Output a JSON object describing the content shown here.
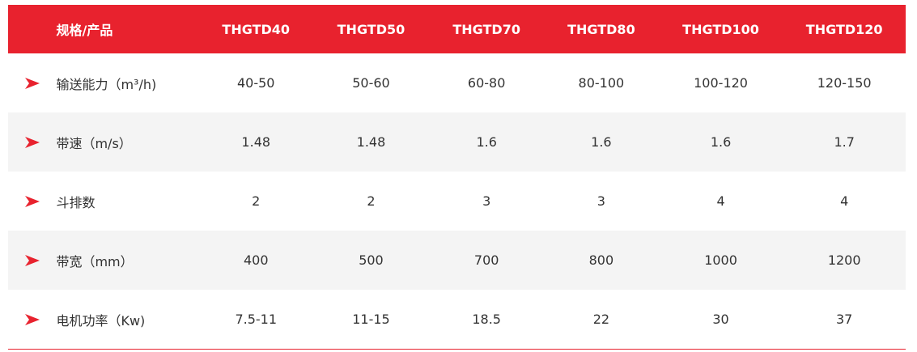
{
  "colors": {
    "accent": "#e8222e",
    "row_alt": "#f4f4f4",
    "text": "#333333"
  },
  "header": {
    "label": "规格/产品",
    "models": [
      "THGTD40",
      "THGTD50",
      "THGTD70",
      "THGTD80",
      "THGTD100",
      "THGTD120"
    ]
  },
  "rows": [
    {
      "label": "输送能力（m³/h)",
      "values": [
        "40-50",
        "50-60",
        "60-80",
        "80-100",
        "100-120",
        "120-150"
      ]
    },
    {
      "label": "带速（m/s）",
      "values": [
        "1.48",
        "1.48",
        "1.6",
        "1.6",
        "1.6",
        "1.7"
      ]
    },
    {
      "label": "斗排数",
      "values": [
        "2",
        "2",
        "3",
        "3",
        "4",
        "4"
      ]
    },
    {
      "label": "带宽（mm）",
      "values": [
        "400",
        "500",
        "700",
        "800",
        "1000",
        "1200"
      ]
    },
    {
      "label": "电机功率（Kw)",
      "values": [
        "7.5-11",
        "11-15",
        "18.5",
        "22",
        "30",
        "37"
      ]
    }
  ],
  "icons": {
    "row_marker": "red-arrow-icon"
  }
}
